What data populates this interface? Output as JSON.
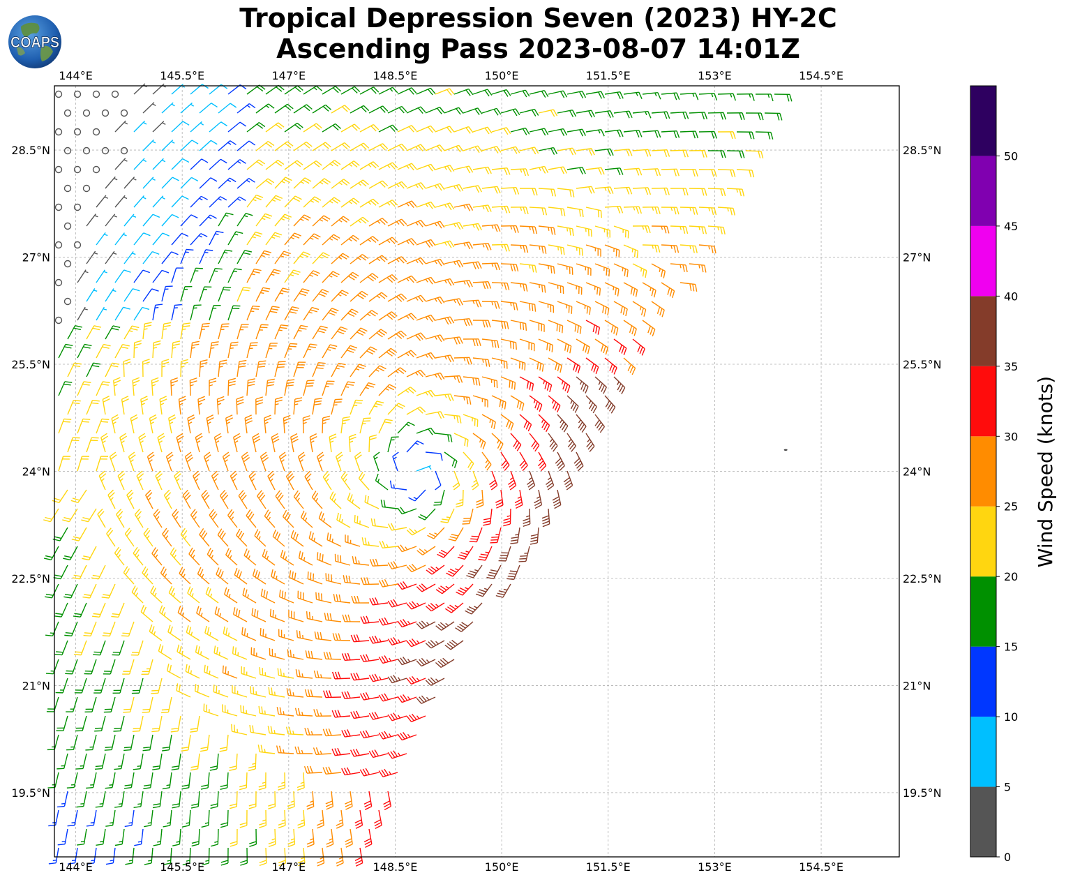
{
  "title": {
    "line1": "Tropical Depression Seven (2023) HY-2C",
    "line2": "Ascending Pass 2023-08-07 14:01Z"
  },
  "logo": {
    "text": "COAPS",
    "icon": "globe-icon"
  },
  "map": {
    "lon_range": [
      143.7,
      155.6
    ],
    "lat_range": [
      18.6,
      29.4
    ],
    "lon_ticks": [
      {
        "value": 144.0,
        "label": "144°E"
      },
      {
        "value": 145.5,
        "label": "145.5°E"
      },
      {
        "value": 147.0,
        "label": "147°E"
      },
      {
        "value": 148.5,
        "label": "148.5°E"
      },
      {
        "value": 150.0,
        "label": "150°E"
      },
      {
        "value": 151.5,
        "label": "151.5°E"
      },
      {
        "value": 153.0,
        "label": "153°E"
      },
      {
        "value": 154.5,
        "label": "154.5°E"
      }
    ],
    "lat_ticks": [
      {
        "value": 28.5,
        "label": "28.5°N"
      },
      {
        "value": 27.0,
        "label": "27°N"
      },
      {
        "value": 25.5,
        "label": "25.5°N"
      },
      {
        "value": 24.0,
        "label": "24°N"
      },
      {
        "value": 22.5,
        "label": "22.5°N"
      },
      {
        "value": 21.0,
        "label": "21°N"
      },
      {
        "value": 19.5,
        "label": "19.5°N"
      }
    ],
    "grid": true,
    "storm_center": {
      "lon": 148.8,
      "lat": 24.0
    },
    "swath_edge": [
      [
        153.9,
        29.0
      ],
      [
        148.0,
        18.6
      ]
    ],
    "island": {
      "lon": 154.0,
      "lat": 24.3
    }
  },
  "colorbar": {
    "label": "Wind Speed (knots)",
    "bins": [
      0,
      5,
      10,
      15,
      20,
      25,
      30,
      35,
      40,
      45,
      50,
      55
    ],
    "colors": [
      "#555555",
      "#00bfff",
      "#0037ff",
      "#009000",
      "#ffd610",
      "#ff8c00",
      "#ff0c0c",
      "#843c2a",
      "#f000f0",
      "#8000b0",
      "#2e0060"
    ],
    "tick_labels": [
      "0",
      "5",
      "10",
      "15",
      "20",
      "25",
      "30",
      "35",
      "40",
      "45",
      "50"
    ]
  }
}
